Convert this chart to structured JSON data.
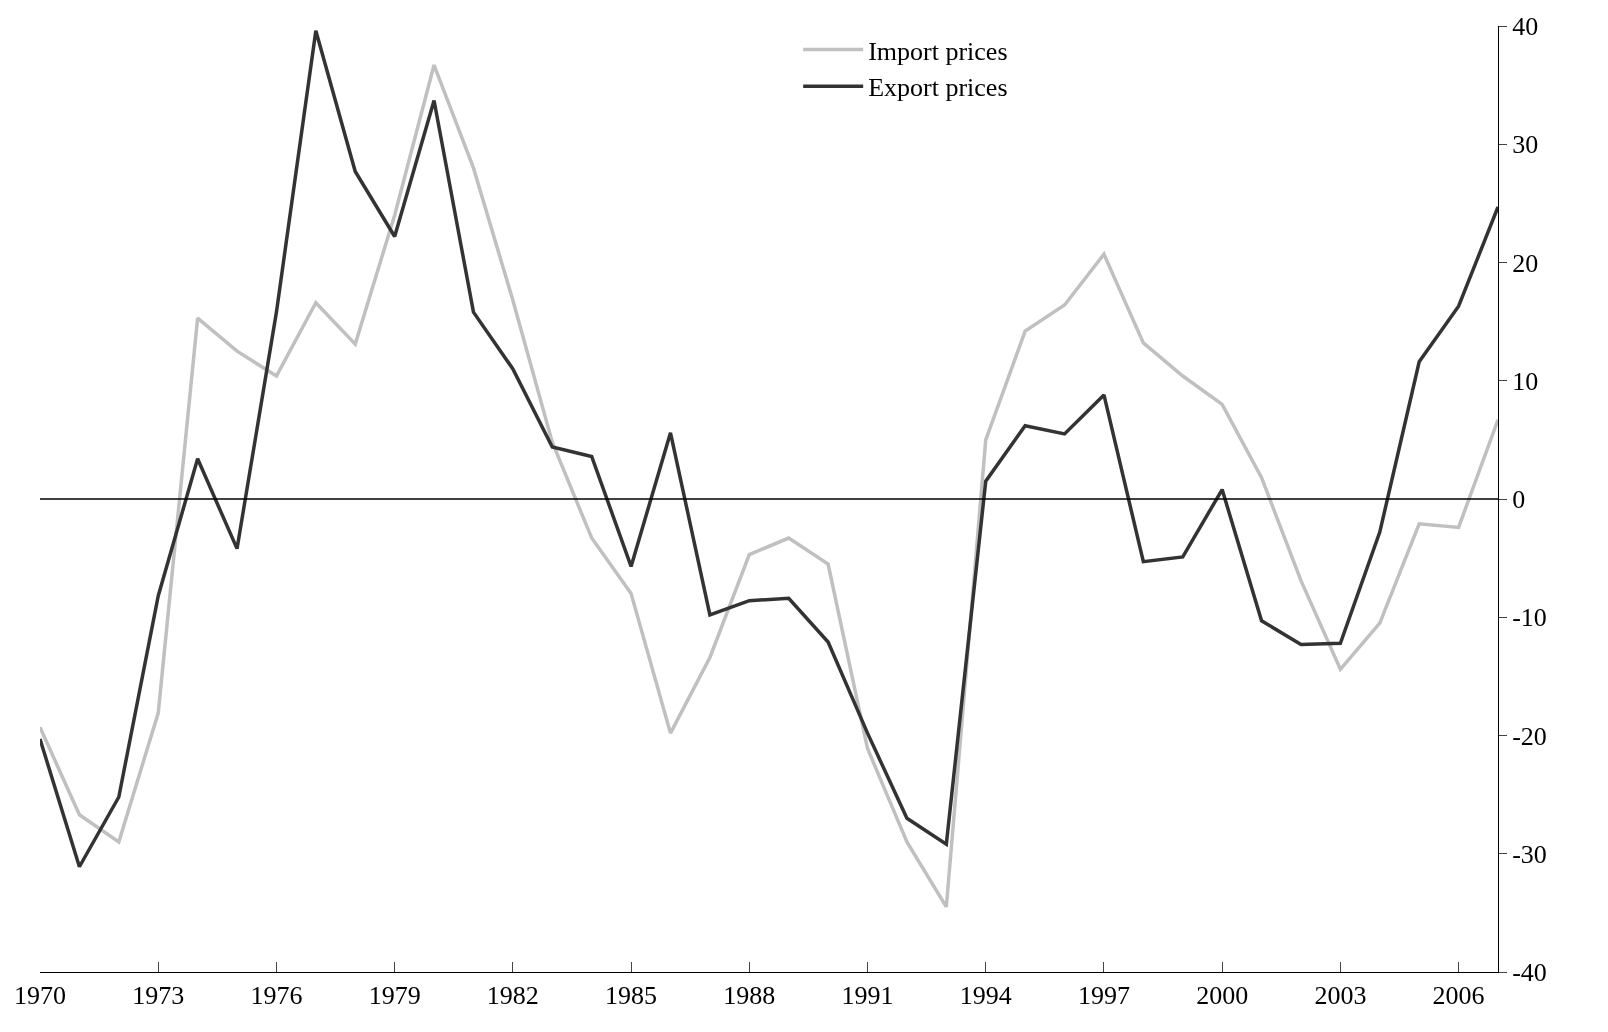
{
  "chart_data": {
    "type": "line",
    "x": [
      1970,
      1971,
      1972,
      1973,
      1974,
      1975,
      1976,
      1977,
      1978,
      1979,
      1980,
      1981,
      1982,
      1983,
      1984,
      1985,
      1986,
      1987,
      1988,
      1989,
      1990,
      1991,
      1992,
      1993,
      1994,
      1995,
      1996,
      1997,
      1998,
      1999,
      2000,
      2001,
      2002,
      2003,
      2004,
      2005,
      2006,
      2007
    ],
    "series": [
      {
        "name": "Import prices",
        "color": "#c0c0c0",
        "values": [
          -19.3,
          -26.7,
          -29,
          -18.1,
          15.3,
          12.5,
          10.4,
          16.6,
          13.1,
          24,
          36.7,
          28,
          16.8,
          4.8,
          -3.3,
          -8,
          -19.8,
          -13.4,
          -4.7,
          -3.3,
          -5.5,
          -21.1,
          -29,
          -34.5,
          5,
          14.2,
          16.4,
          20.7,
          13.2,
          10.4,
          8,
          1.8,
          -6.9,
          -14.4,
          -10.5,
          -2.1,
          -2.4,
          6.7
        ]
      },
      {
        "name": "Export prices",
        "color": "#333333",
        "values": [
          -20.3,
          -31.1,
          -25.2,
          -8.2,
          3.4,
          -4.2,
          15.8,
          39.6,
          27.7,
          22.2,
          33.7,
          15.8,
          11,
          4.4,
          3.6,
          -5.7,
          5.6,
          -9.8,
          -8.6,
          -8.4,
          -12.1,
          -19.8,
          -27,
          -29.2,
          1.5,
          6.2,
          5.5,
          8.8,
          -5.3,
          -4.9,
          0.8,
          -10.3,
          -12.3,
          -12.2,
          -2.8,
          11.6,
          16.3,
          24.7
        ]
      }
    ],
    "xlim": [
      1970,
      2007
    ],
    "xticks": [
      1970,
      1973,
      1976,
      1979,
      1982,
      1985,
      1988,
      1991,
      1994,
      1997,
      2000,
      2003,
      2006
    ],
    "ylim": [
      -40,
      40
    ],
    "yticks": [
      -40,
      -30,
      -20,
      -10,
      0,
      10,
      20,
      30,
      40
    ],
    "ref_lines": [
      {
        "axis": "y",
        "value": 0,
        "color": "#000000"
      }
    ],
    "grid": false,
    "legend": "top right",
    "marker": "none",
    "line_style": "solid"
  }
}
